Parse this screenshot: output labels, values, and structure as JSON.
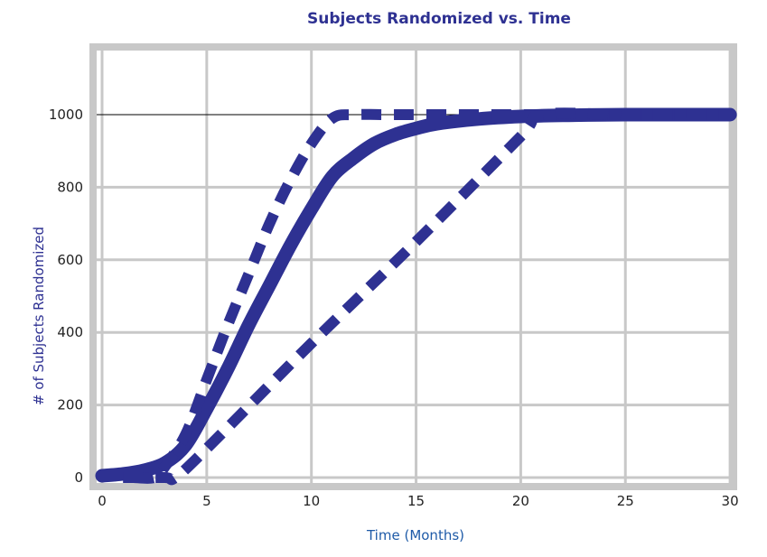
{
  "chart_data": {
    "type": "line",
    "title": "Subjects Randomized vs. Time",
    "xlabel": "Time (Months)",
    "ylabel": "# of Subjects Randomized",
    "xlim": [
      -0.5,
      30
    ],
    "ylim": [
      0,
      1200
    ],
    "xticks": [
      0,
      5,
      10,
      15,
      20,
      25,
      30
    ],
    "yticks": [
      0,
      200,
      400,
      600,
      800,
      1000
    ],
    "grid": true,
    "reference_line": 1000,
    "colors": {
      "series": "#2e3192",
      "grid": "#c8c8c8",
      "title": "#2e3192",
      "ylabel": "#2e3192",
      "xlabel": "#1f5ba8"
    },
    "series": [
      {
        "style": "solid",
        "x": [
          0,
          1,
          2,
          3,
          4,
          5,
          6,
          7,
          8,
          9,
          10,
          11,
          12,
          13,
          14,
          15,
          16,
          18,
          20,
          22,
          25,
          30
        ],
        "y": [
          5,
          10,
          20,
          40,
          90,
          190,
          300,
          420,
          530,
          640,
          740,
          830,
          880,
          920,
          945,
          962,
          975,
          988,
          995,
          998,
          1000,
          1000
        ]
      },
      {
        "style": "dashed",
        "x": [
          1.5,
          2.5,
          3,
          4,
          5,
          6,
          7,
          8,
          9,
          10,
          11,
          12,
          14,
          20,
          30
        ],
        "y": [
          0,
          0,
          30,
          120,
          270,
          420,
          560,
          700,
          820,
          920,
          990,
          1000,
          1000,
          1000,
          1000
        ]
      },
      {
        "style": "dashed",
        "x": [
          1,
          3,
          3.5,
          5,
          10,
          15,
          20,
          21,
          25,
          30
        ],
        "y": [
          0,
          0,
          0,
          80,
          370,
          650,
          940,
          1000,
          1000,
          1000
        ]
      }
    ]
  }
}
